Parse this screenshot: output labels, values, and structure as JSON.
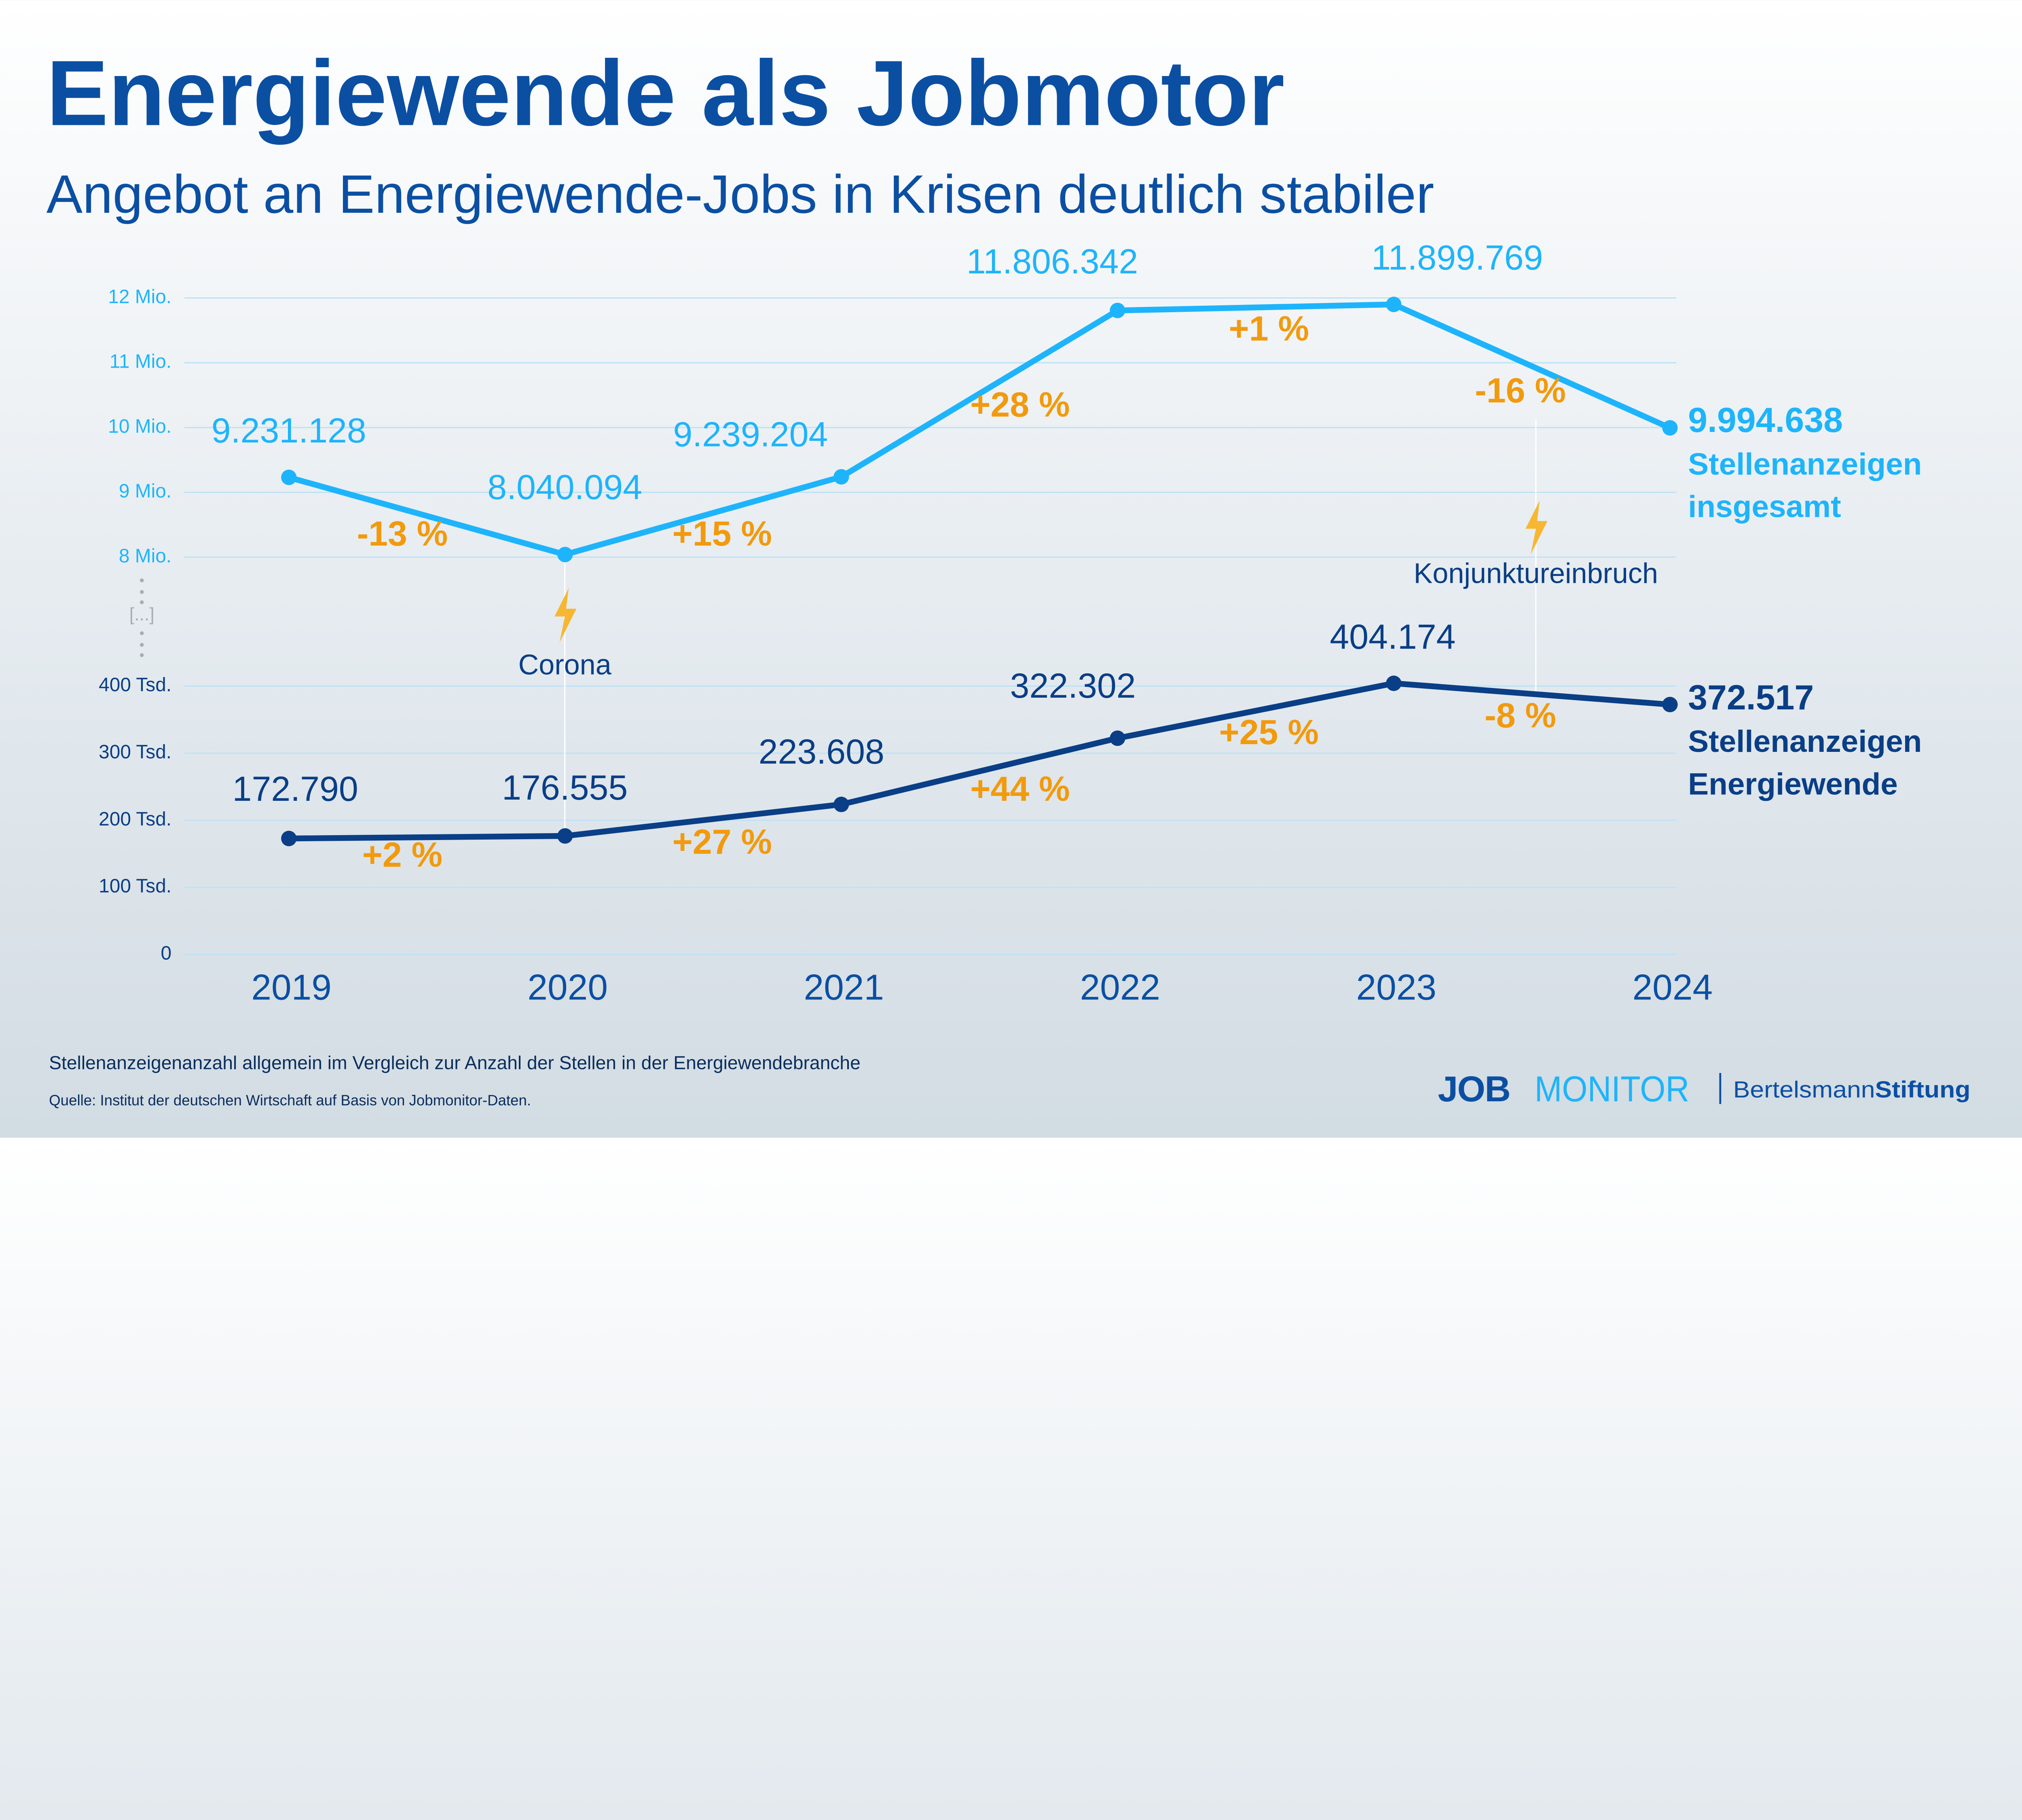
{
  "title": "Energiewende als Jobmotor",
  "subtitle": "Angebot an Energiewende-Jobs in Krisen deutlich stabiler",
  "footnote": "Stellenanzeigenanzahl allgemein im Vergleich zur Anzahl der Stellen in der Energiewendebranche",
  "source": "Quelle: Institut der deutschen Wirtschaft auf Basis von Jobmonitor-Daten.",
  "logos": {
    "jobmonitor": "JOBMONITOR",
    "bertelsmann_a": "Bertelsmann",
    "bertelsmann_b": "Stiftung"
  },
  "colors": {
    "title": "#0b4fa3",
    "total": "#1eb4fb",
    "energy": "#0a3e86",
    "change": "#f29a0d",
    "event": "#f7b733",
    "grid": "#bfe2f5",
    "break": "#a9adb1"
  },
  "axis_break_label": "[...]",
  "chart_data": {
    "type": "line",
    "categories": [
      "2019",
      "2020",
      "2021",
      "2022",
      "2023",
      "2024"
    ],
    "broken_y_axis": true,
    "grid": true,
    "upper_axis": {
      "ticks": [
        8000000,
        9000000,
        10000000,
        11000000,
        12000000
      ],
      "tick_labels": [
        "8 Mio.",
        "9 Mio.",
        "10 Mio.",
        "11 Mio.",
        "12 Mio."
      ],
      "range": [
        8000000,
        12000000
      ]
    },
    "lower_axis": {
      "ticks": [
        0,
        100000,
        200000,
        300000,
        400000
      ],
      "tick_labels": [
        "0",
        "100 Tsd.",
        "200 Tsd.",
        "300 Tsd.",
        "400 Tsd."
      ],
      "range": [
        0,
        400000
      ]
    },
    "series": [
      {
        "name": "Stellenanzeigen insgesamt",
        "name_lines": [
          "Stellenanzeigen",
          "insgesamt"
        ],
        "axis": "upper",
        "values": [
          9231128,
          8040094,
          9239204,
          11806342,
          11899769,
          9994638
        ],
        "labels": [
          "9.231.128",
          "8.040.094",
          "9.239.204",
          "11.806.342",
          "11.899.769",
          "9.994.638"
        ],
        "changes": [
          "-13 %",
          "+15 %",
          "+28 %",
          "+1 %",
          "-16 %"
        ]
      },
      {
        "name": "Stellenanzeigen Energiewende",
        "name_lines": [
          "Stellenanzeigen",
          "Energiewende"
        ],
        "axis": "lower",
        "values": [
          172790,
          176555,
          223608,
          322302,
          404174,
          372517
        ],
        "labels": [
          "172.790",
          "176.555",
          "223.608",
          "322.302",
          "404.174",
          "372.517"
        ],
        "changes": [
          "+2 %",
          "+27 %",
          "+44 %",
          "+25 %",
          "-8 %"
        ]
      }
    ],
    "annotations": [
      {
        "label": "Corona",
        "at": "2020",
        "icon": "lightning-icon"
      },
      {
        "label": "Konjunktureinbruch",
        "at": "2023/2024",
        "icon": "lightning-icon"
      }
    ]
  }
}
